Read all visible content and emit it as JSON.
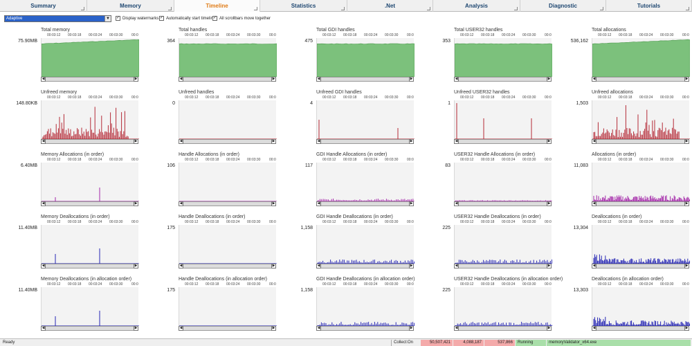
{
  "tabs": [
    {
      "label": "Summary",
      "active": false
    },
    {
      "label": "Memory",
      "active": false
    },
    {
      "label": "Timeline",
      "active": true
    },
    {
      "label": "Statistics",
      "active": false
    },
    {
      "label": ".Net",
      "active": false
    },
    {
      "label": "Analysis",
      "active": false
    },
    {
      "label": "Diagnostic",
      "active": false
    },
    {
      "label": "Tutorials",
      "active": false
    }
  ],
  "toolbar": {
    "mode": "Adaptive",
    "display_watermarks": "Display watermarks",
    "auto_start_timeline": "Automatically start timeline",
    "scrollbars_together": "All scrollbars move together"
  },
  "time_labels": [
    "00:03:12",
    "00:03:18",
    "00:03:24",
    "00:03:30",
    "00:0"
  ],
  "colors": {
    "green": "#7cc17c",
    "green_line": "#4e9a4e",
    "red": "#b42a36",
    "magenta": "#a326a8",
    "blue": "#2626b4"
  },
  "graphs": [
    [
      {
        "title": "Total memory",
        "peak": "75.90MB",
        "style": "area-rise"
      },
      {
        "title": "Total handles",
        "peak": "364",
        "style": "area-flat"
      },
      {
        "title": "Total GDI handles",
        "peak": "475",
        "style": "area-flat"
      },
      {
        "title": "Total USER32 handles",
        "peak": "353",
        "style": "area-flat"
      },
      {
        "title": "Total allocations",
        "peak": "536,162",
        "style": "area-rise"
      }
    ],
    [
      {
        "title": "Unfreed memory",
        "peak": "148.80KB",
        "style": "dense-red"
      },
      {
        "title": "Unfreed handles",
        "peak": "0",
        "style": "empty-red"
      },
      {
        "title": "Unfreed GDI handles",
        "peak": "4",
        "style": "sparse-red"
      },
      {
        "title": "Unfreed USER32 handles",
        "peak": "1",
        "style": "sparse-red2"
      },
      {
        "title": "Unfreed allocations",
        "peak": "1,503",
        "style": "dense-red"
      }
    ],
    [
      {
        "title": "Memory Allocations (in order)",
        "peak": "6.40MB",
        "style": "few-magenta"
      },
      {
        "title": "Handle Allocations (in order)",
        "peak": "106",
        "style": "empty-magenta"
      },
      {
        "title": "GDI Handle Allocations (in order)",
        "peak": "117",
        "style": "low-magenta"
      },
      {
        "title": "USER32 Handle Allocations (in order)",
        "peak": "83",
        "style": "flat-magenta"
      },
      {
        "title": "Allocations (in order)",
        "peak": "11,083",
        "style": "mid-magenta"
      }
    ],
    [
      {
        "title": "Memory Deallocations (in order)",
        "peak": "11.40MB",
        "style": "few-blue"
      },
      {
        "title": "Handle Deallocations (in order)",
        "peak": "175",
        "style": "empty-blue"
      },
      {
        "title": "GDI Handle Deallocations (in order)",
        "peak": "1,158",
        "style": "low-blue"
      },
      {
        "title": "USER32 Handle Deallocations (in order)",
        "peak": "225",
        "style": "low-blue"
      },
      {
        "title": "Deallocations (in order)",
        "peak": "13,304",
        "style": "mid-blue"
      }
    ],
    [
      {
        "title": "Memory Deallocations (in allocation order)",
        "peak": "11.40MB",
        "style": "few-blue"
      },
      {
        "title": "Handle Deallocations (in allocation order)",
        "peak": "175",
        "style": "empty-blue"
      },
      {
        "title": "GDI Handle Deallocations (in allocation order)",
        "peak": "1,158",
        "style": "low-blue"
      },
      {
        "title": "USER32 Handle Deallocations (in allocation order)",
        "peak": "225",
        "style": "low-blue"
      },
      {
        "title": "Deallocations (in allocation order)",
        "peak": "13,303",
        "style": "mid-blue"
      }
    ]
  ],
  "status": {
    "ready": "Ready",
    "collect": "Collect:On",
    "v1": "50,507,421",
    "v2": "4,088,187",
    "v3": "537,866",
    "running": "Running",
    "exe": "memoryValidator_x64.exe"
  }
}
